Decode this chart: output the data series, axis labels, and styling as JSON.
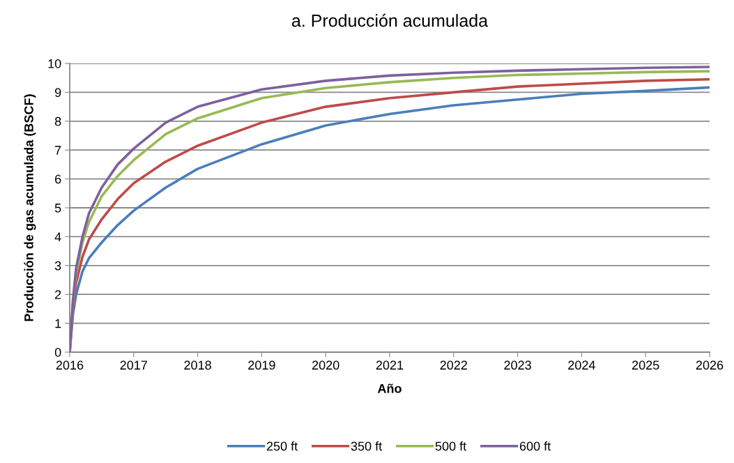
{
  "chart_data": {
    "type": "line",
    "title": "a. Producción acumulada",
    "xlabel": "Año",
    "ylabel": "Producción de gas acumulada (BSCF)",
    "x": [
      2016,
      2016.05,
      2016.1,
      2016.2,
      2016.3,
      2016.5,
      2016.75,
      2017,
      2017.5,
      2018,
      2019,
      2020,
      2021,
      2022,
      2023,
      2024,
      2025,
      2026
    ],
    "series": [
      {
        "name": "250 ft",
        "color": "#4a7ebb",
        "values": [
          0,
          1.3,
          2.0,
          2.8,
          3.25,
          3.8,
          4.4,
          4.9,
          5.7,
          6.35,
          7.2,
          7.85,
          8.25,
          8.55,
          8.75,
          8.95,
          9.05,
          9.17
        ]
      },
      {
        "name": "350 ft",
        "color": "#be4b48",
        "values": [
          0,
          1.5,
          2.4,
          3.3,
          3.9,
          4.6,
          5.3,
          5.85,
          6.6,
          7.15,
          7.95,
          8.5,
          8.8,
          9.0,
          9.2,
          9.3,
          9.4,
          9.45
        ]
      },
      {
        "name": "500 ft",
        "color": "#98b954",
        "values": [
          0,
          1.7,
          2.7,
          3.8,
          4.5,
          5.4,
          6.1,
          6.65,
          7.55,
          8.1,
          8.8,
          9.15,
          9.35,
          9.5,
          9.6,
          9.65,
          9.7,
          9.73
        ]
      },
      {
        "name": "600 ft",
        "color": "#7d60a0",
        "values": [
          0,
          1.8,
          2.9,
          4.0,
          4.8,
          5.7,
          6.5,
          7.05,
          7.95,
          8.5,
          9.1,
          9.4,
          9.58,
          9.68,
          9.75,
          9.8,
          9.85,
          9.88
        ]
      }
    ],
    "xlim": [
      2016,
      2026
    ],
    "xticks": [
      2016,
      2017,
      2018,
      2019,
      2020,
      2021,
      2022,
      2023,
      2024,
      2025,
      2026
    ],
    "ylim": [
      0,
      10
    ],
    "yticks": [
      0,
      1,
      2,
      3,
      4,
      5,
      6,
      7,
      8,
      9,
      10
    ],
    "grid": "y",
    "legend": "bottom",
    "marker": "none",
    "line_style": "solid"
  }
}
